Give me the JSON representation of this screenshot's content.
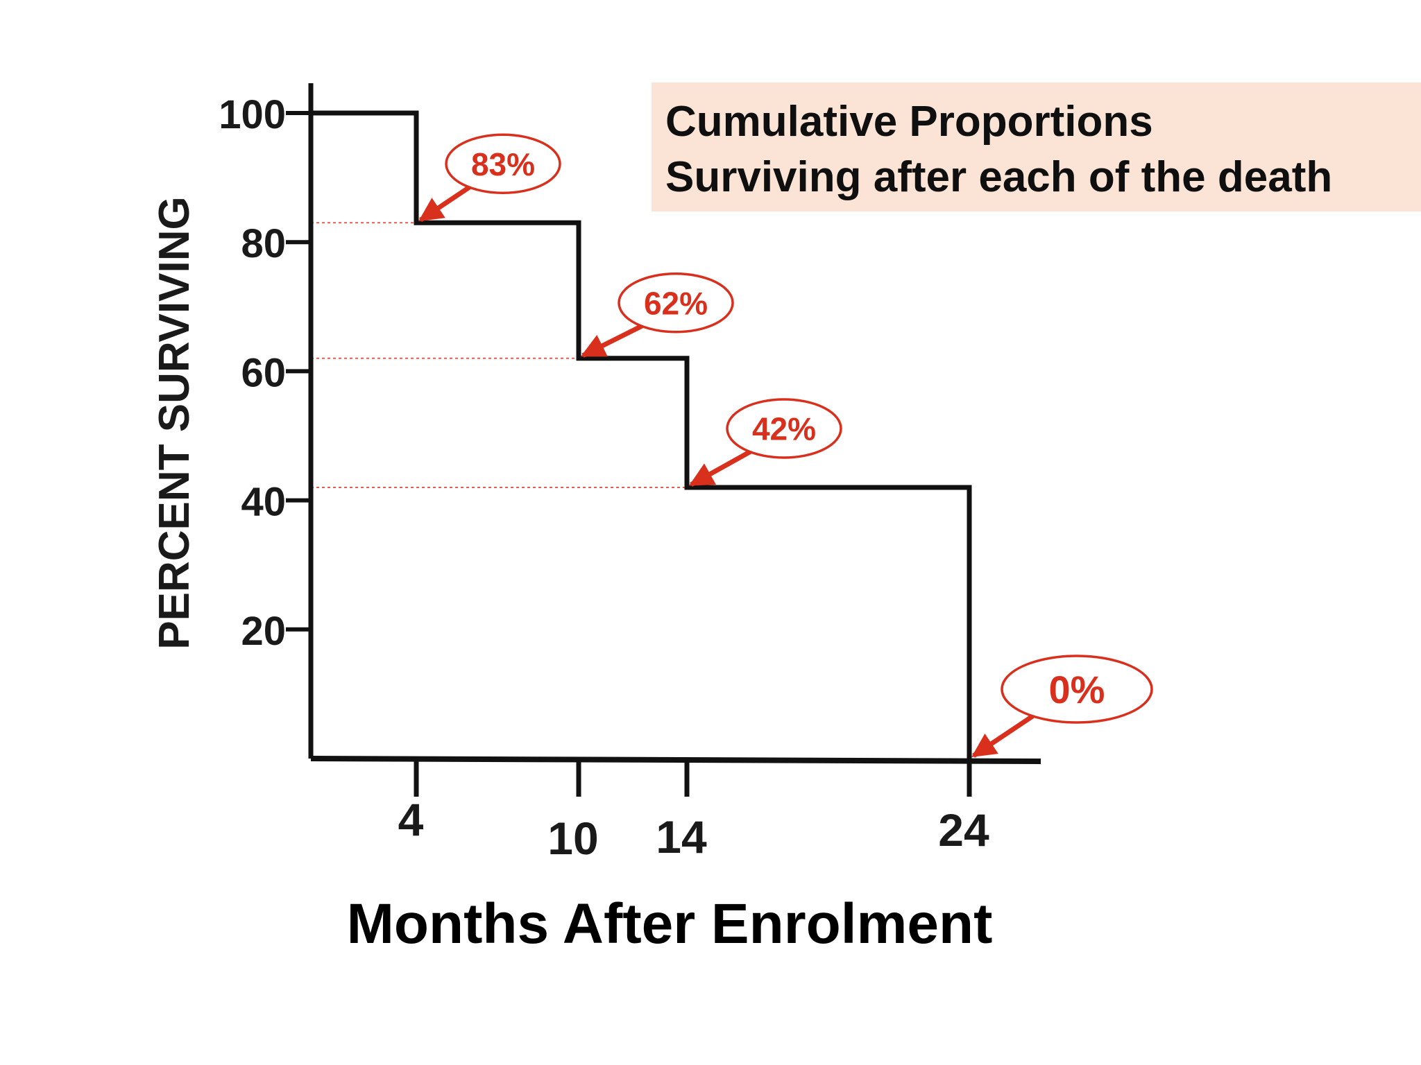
{
  "chart_data": {
    "type": "line",
    "step": true,
    "title": [
      "Cumulative Proportions",
      "Surviving after each of the death"
    ],
    "xlabel": "Months After Enrolment",
    "ylabel": "PERCENT SURVIVING",
    "x_ticks": [
      4,
      10,
      14,
      24
    ],
    "y_ticks": [
      20,
      40,
      60,
      80,
      100
    ],
    "xlim": [
      0,
      27
    ],
    "ylim": [
      0,
      100
    ],
    "grid": false,
    "series": [
      {
        "x": [
          0,
          4,
          4,
          10,
          10,
          14,
          14,
          24,
          24
        ],
        "y": [
          100,
          100,
          83,
          83,
          62,
          62,
          42,
          42,
          0
        ]
      }
    ],
    "annotations": [
      {
        "text": "83%",
        "x": 4,
        "y": 83
      },
      {
        "text": "62%",
        "x": 10,
        "y": 62
      },
      {
        "text": "42%",
        "x": 14,
        "y": 42
      },
      {
        "text": "0%",
        "x": 24,
        "y": 0
      }
    ],
    "colors": {
      "line": "#111111",
      "callout": "#d9301e",
      "guide": "#e0604e",
      "title_bg": "#fbe3d5"
    }
  }
}
